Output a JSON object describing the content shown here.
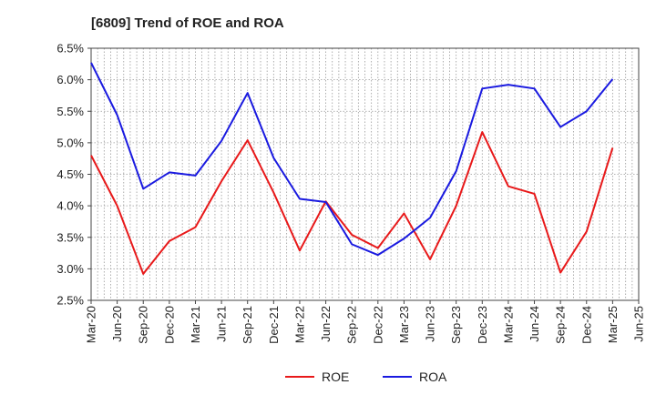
{
  "chart_data": {
    "type": "line",
    "title": "[6809]  Trend of ROE and ROA",
    "xlabel": "",
    "ylabel": "",
    "categories": [
      "Mar-20",
      "Jun-20",
      "Sep-20",
      "Dec-20",
      "Mar-21",
      "Jun-21",
      "Sep-21",
      "Dec-21",
      "Mar-22",
      "Jun-22",
      "Sep-22",
      "Dec-22",
      "Mar-23",
      "Jun-23",
      "Sep-23",
      "Dec-23",
      "Mar-24",
      "Jun-24",
      "Sep-24",
      "Dec-24",
      "Mar-25",
      "Jun-25"
    ],
    "ylim": [
      2.5,
      6.5
    ],
    "yticks": [
      "2.5%",
      "3.0%",
      "3.5%",
      "4.0%",
      "4.5%",
      "5.0%",
      "5.5%",
      "6.0%",
      "6.5%"
    ],
    "ytick_values": [
      2.5,
      3.0,
      3.5,
      4.0,
      4.5,
      5.0,
      5.5,
      6.0,
      6.5
    ],
    "grid": true,
    "legend_position": "bottom-center",
    "series": [
      {
        "name": "ROE",
        "color": "#e8191a",
        "values": [
          4.8,
          4.0,
          2.92,
          3.44,
          3.66,
          4.39,
          5.04,
          4.21,
          3.29,
          4.07,
          3.54,
          3.33,
          3.88,
          3.15,
          4.0,
          5.17,
          4.31,
          4.19,
          2.94,
          3.59,
          4.92,
          null
        ]
      },
      {
        "name": "ROA",
        "color": "#1a1ae0",
        "values": [
          6.27,
          5.44,
          4.27,
          4.53,
          4.48,
          5.03,
          5.79,
          4.76,
          4.11,
          4.06,
          3.39,
          3.22,
          3.48,
          3.81,
          4.55,
          5.86,
          5.92,
          5.86,
          5.25,
          5.5,
          6.01,
          null
        ]
      }
    ]
  }
}
